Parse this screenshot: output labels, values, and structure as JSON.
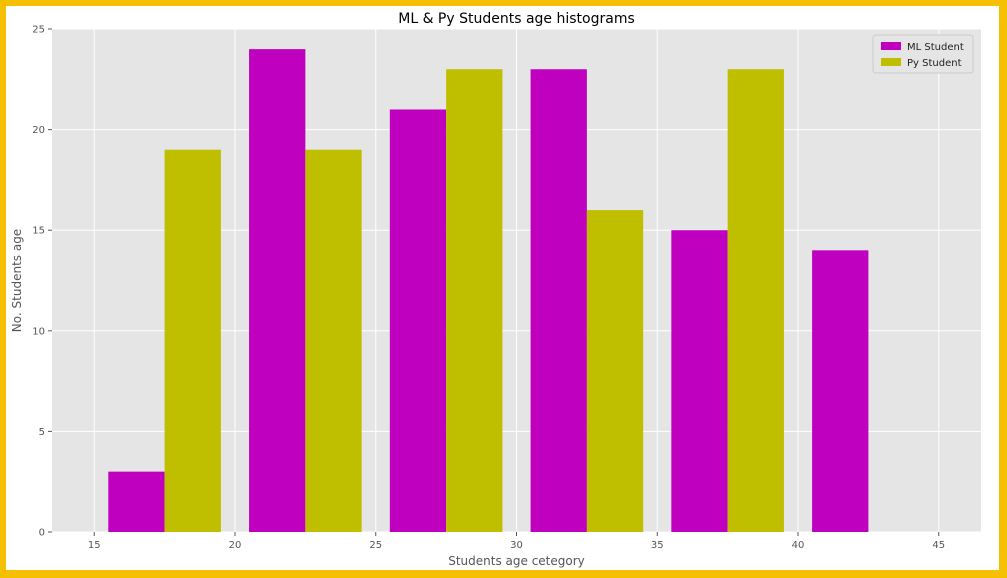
{
  "chart_data": {
    "type": "bar",
    "title": "ML & Py Students age histograms",
    "xlabel": "Students age cetegory",
    "ylabel": "No. Students age",
    "xlim": [
      13.5,
      46.5
    ],
    "ylim": [
      0,
      25
    ],
    "xticks": [
      "15",
      "20",
      "25",
      "30",
      "35",
      "40",
      "45"
    ],
    "yticks": [
      "0",
      "5",
      "10",
      "15",
      "20",
      "25"
    ],
    "grid": true,
    "legend_position": "top-right",
    "bar_width": 2,
    "series": [
      {
        "name": "ML Student",
        "color": "#bf00bf",
        "x": [
          16.5,
          21.5,
          26.5,
          31.5,
          36.5,
          41.5
        ],
        "values": [
          3,
          24,
          21,
          23,
          15,
          14
        ]
      },
      {
        "name": "Py Student",
        "color": "#bfbf00",
        "x": [
          18.5,
          23.5,
          28.5,
          33.5,
          38.5
        ],
        "values": [
          19,
          19,
          23,
          16,
          23
        ]
      }
    ]
  },
  "colors": {
    "frame_border": "#f5c000",
    "plot_background": "#e5e5e5",
    "grid": "#ffffff"
  }
}
